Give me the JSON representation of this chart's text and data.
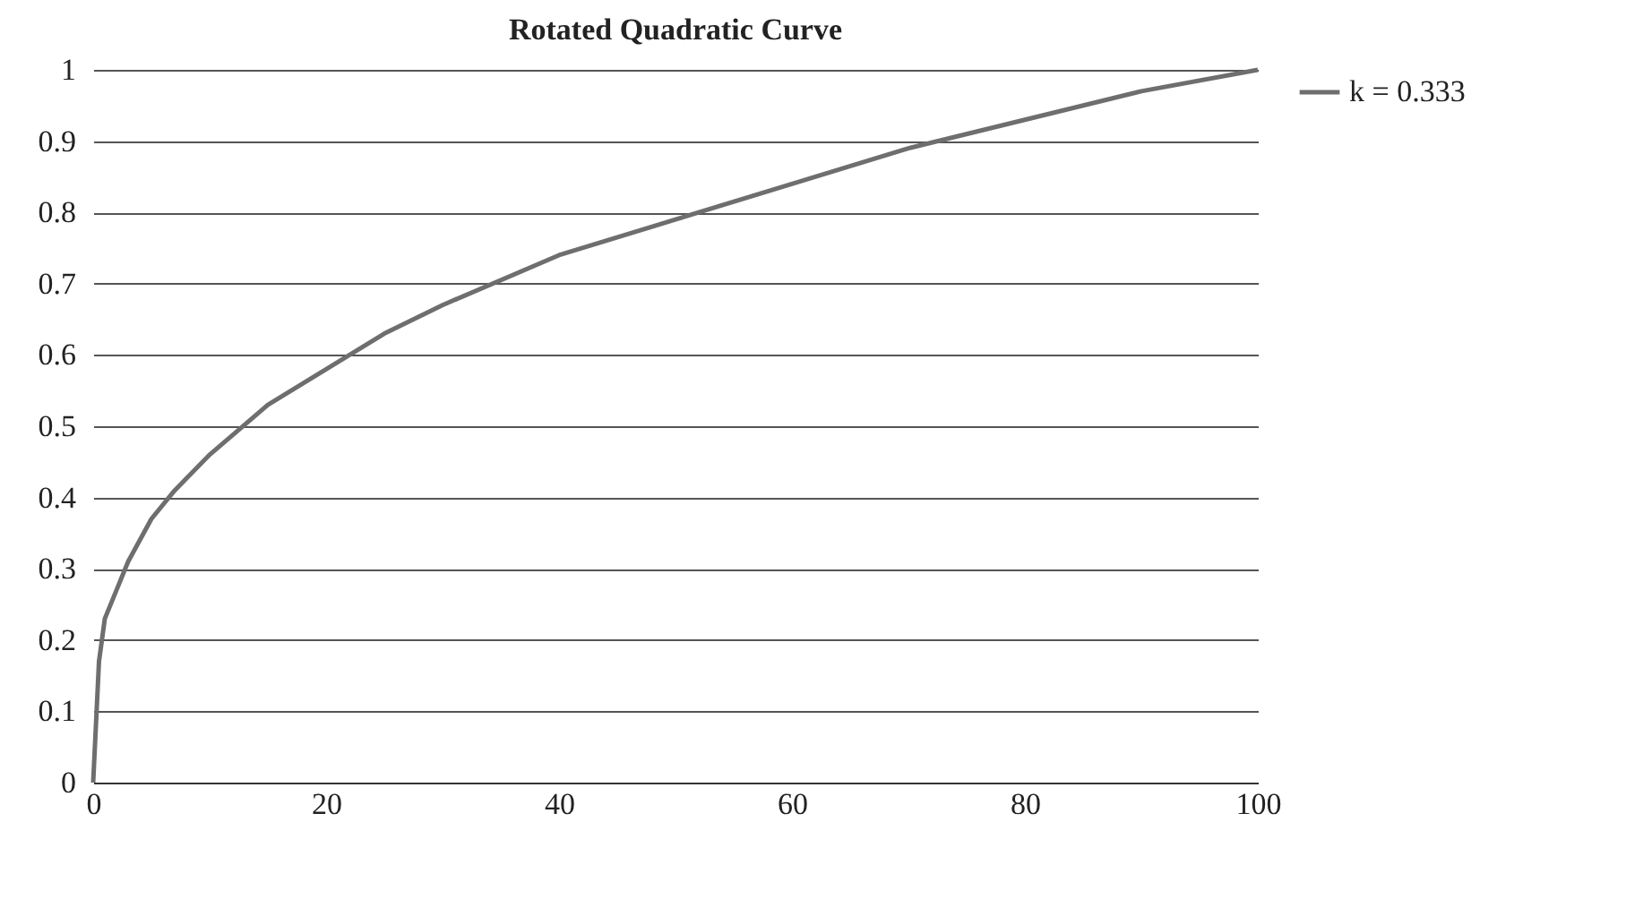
{
  "chart_data": {
    "type": "line",
    "title": "Rotated Quadratic Curve",
    "x": [
      0,
      0.5,
      1,
      2,
      3,
      5,
      7,
      10,
      15,
      20,
      25,
      30,
      40,
      50,
      60,
      70,
      80,
      90,
      100
    ],
    "series": [
      {
        "name": "k = 0.333",
        "color": "#6e6e6e",
        "values": [
          0,
          0.17,
          0.23,
          0.27,
          0.31,
          0.37,
          0.41,
          0.46,
          0.53,
          0.58,
          0.63,
          0.67,
          0.74,
          0.79,
          0.84,
          0.89,
          0.93,
          0.97,
          1.0
        ]
      }
    ],
    "xlim": [
      0,
      100
    ],
    "xticks": [
      0,
      20,
      40,
      60,
      80,
      100
    ],
    "ylim": [
      0,
      1
    ],
    "yticks": [
      0,
      0.1,
      0.2,
      0.3,
      0.4,
      0.5,
      0.6,
      0.7,
      0.8,
      0.9,
      1
    ],
    "grid": "y",
    "legend": "right",
    "marker": "none",
    "line_style": "solid"
  }
}
